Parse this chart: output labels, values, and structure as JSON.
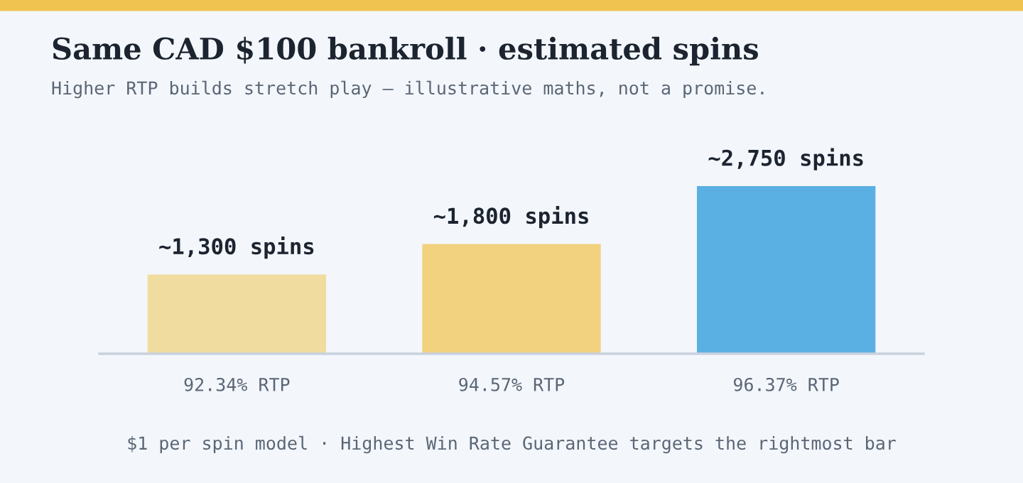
{
  "chart_data": {
    "type": "bar",
    "title": "Same CAD $100 bankroll · estimated spins",
    "subtitle": "Higher RTP builds stretch play — illustrative maths, not a promise.",
    "categories": [
      "92.34% RTP",
      "94.57% RTP",
      "96.37% RTP"
    ],
    "values": [
      1300,
      1800,
      2750
    ],
    "colors": [
      "#f1dca0",
      "#f2d27e",
      "#5aafe3"
    ],
    "value_labels": [
      "~1,300 spins",
      "~1,800 spins",
      "~2,750 spins"
    ],
    "annotations": [
      "$1 per spin model · Highest Win Rate Guarantee targets the rightmost bar"
    ],
    "grid": false,
    "legend": false
  }
}
